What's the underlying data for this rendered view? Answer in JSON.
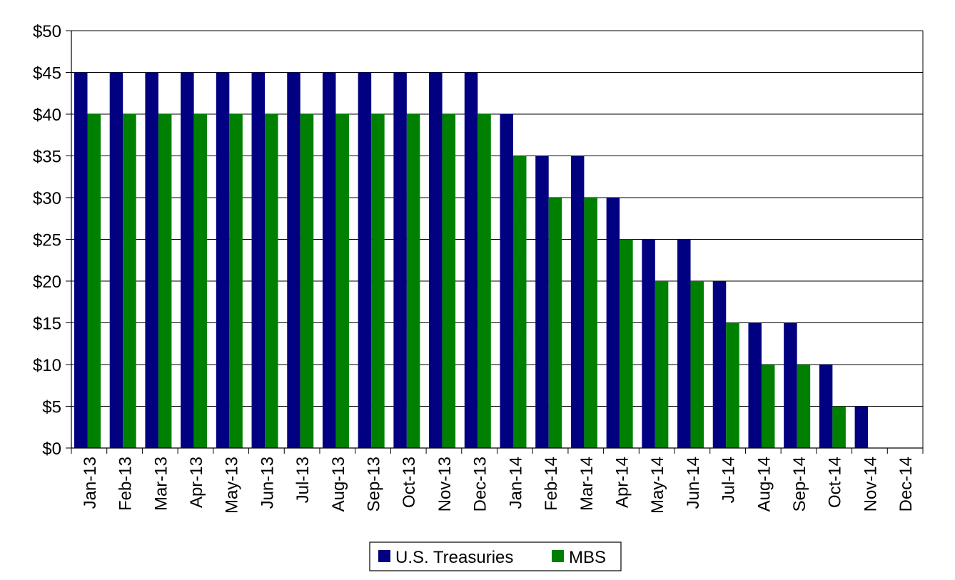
{
  "chart_data": {
    "type": "bar",
    "title": "",
    "xlabel": "",
    "ylabel": "",
    "ylim": [
      0,
      50
    ],
    "y_ticks": [
      0,
      5,
      10,
      15,
      20,
      25,
      30,
      35,
      40,
      45,
      50
    ],
    "y_tick_prefix": "$",
    "grid": "horizontal",
    "legend_position": "bottom-center",
    "categories": [
      "Jan-13",
      "Feb-13",
      "Mar-13",
      "Apr-13",
      "May-13",
      "Jun-13",
      "Jul-13",
      "Aug-13",
      "Sep-13",
      "Oct-13",
      "Nov-13",
      "Dec-13",
      "Jan-14",
      "Feb-14",
      "Mar-14",
      "Apr-14",
      "May-14",
      "Jun-14",
      "Jul-14",
      "Aug-14",
      "Sep-14",
      "Oct-14",
      "Nov-14",
      "Dec-14"
    ],
    "series": [
      {
        "name": "U.S. Treasuries",
        "color": "#000080",
        "values": [
          45,
          45,
          45,
          45,
          45,
          45,
          45,
          45,
          45,
          45,
          45,
          45,
          40,
          35,
          35,
          30,
          25,
          25,
          20,
          15,
          15,
          10,
          5,
          0
        ]
      },
      {
        "name": "MBS",
        "color": "#008000",
        "values": [
          40,
          40,
          40,
          40,
          40,
          40,
          40,
          40,
          40,
          40,
          40,
          40,
          35,
          30,
          30,
          25,
          20,
          20,
          15,
          10,
          10,
          5,
          0,
          0
        ]
      }
    ]
  }
}
